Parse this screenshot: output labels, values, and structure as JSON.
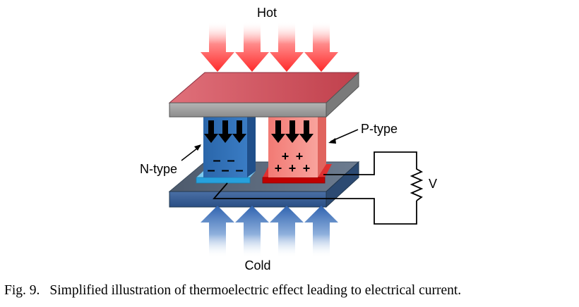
{
  "labels": {
    "hot": "Hot",
    "cold": "Cold",
    "n_type": "N-type",
    "p_type": "P-type",
    "voltage": "V"
  },
  "charges": {
    "n_symbol": "–",
    "p_symbol": "+"
  },
  "caption": {
    "figure_number": "Fig. 9.",
    "text": "Simplified illustration of thermoelectric effect leading to electrical current."
  },
  "colors": {
    "hot_arrow": "#ff4040",
    "cold_arrow": "#3f6fb8",
    "n_leg": "#2f6fb6",
    "p_leg": "#f4857f",
    "n_contact": "#39a8e0",
    "p_contact": "#cc0000",
    "hot_plate": "#cf5d68",
    "cold_plate": "#5b6b80"
  }
}
